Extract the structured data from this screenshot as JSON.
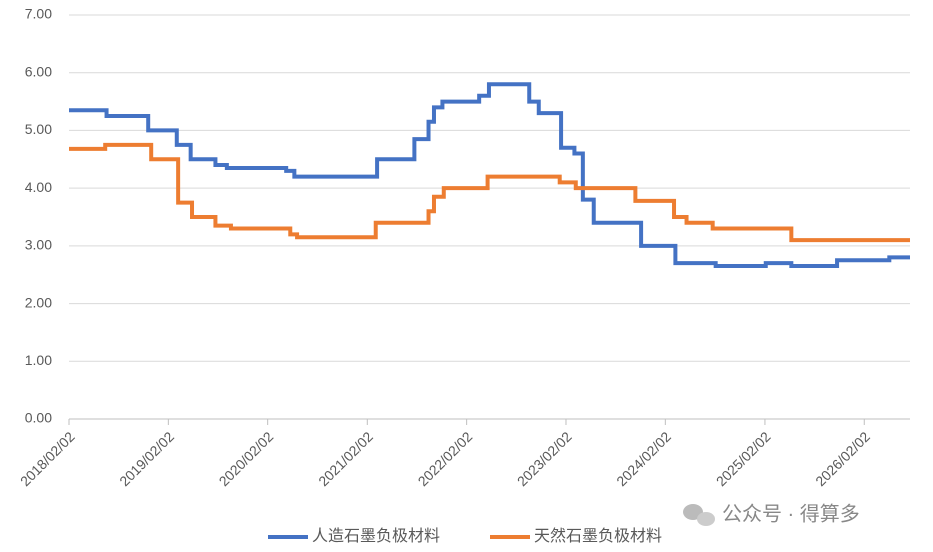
{
  "chart_data": {
    "type": "line",
    "step": "post",
    "xlim": [
      "2018/02/02",
      "2026/07/20"
    ],
    "xticks": [
      "2018/02/02",
      "2019/02/02",
      "2020/02/02",
      "2021/02/02",
      "2022/02/02",
      "2023/02/02",
      "2024/02/02",
      "2025/02/02",
      "2026/02/02"
    ],
    "ylim": [
      0,
      7
    ],
    "yticks": [
      {
        "value": 0,
        "label": "0.00"
      },
      {
        "value": 1,
        "label": "1.00"
      },
      {
        "value": 2,
        "label": "2.00"
      },
      {
        "value": 3,
        "label": "3.00"
      },
      {
        "value": 4,
        "label": "4.00"
      },
      {
        "value": 5,
        "label": "5.00"
      },
      {
        "value": 6,
        "label": "6.00"
      },
      {
        "value": 7,
        "label": "7.00"
      }
    ],
    "grid": true,
    "legend": "bottom",
    "series": [
      {
        "name": "人造石墨负极材料",
        "color": "#4472c4",
        "x": [
          "2018/02/02",
          "2018/06/20",
          "2018/11/20",
          "2019/03/05",
          "2019/04/25",
          "2019/07/25",
          "2019/09/05",
          "2020/04/10",
          "2020/05/10",
          "2021/03/10",
          "2021/07/25",
          "2021/09/15",
          "2021/10/05",
          "2021/11/05",
          "2022/03/20",
          "2022/04/25",
          "2022/09/20",
          "2022/10/25",
          "2023/01/15",
          "2023/03/05",
          "2023/04/05",
          "2023/05/15",
          "2023/11/05",
          "2024/03/10",
          "2024/08/05",
          "2025/02/05",
          "2025/05/10",
          "2025/10/25",
          "2026/05/05"
        ],
        "values": [
          5.35,
          5.25,
          5.0,
          4.75,
          4.5,
          4.4,
          4.35,
          4.3,
          4.2,
          4.5,
          4.85,
          5.15,
          5.4,
          5.5,
          5.6,
          5.8,
          5.5,
          5.3,
          4.7,
          4.6,
          3.8,
          3.4,
          3.0,
          2.7,
          2.65,
          2.7,
          2.65,
          2.75,
          2.8
        ]
      },
      {
        "name": "天然石墨负极材料",
        "color": "#ed7d31",
        "x": [
          "2018/02/02",
          "2018/06/15",
          "2018/12/01",
          "2019/03/10",
          "2019/04/30",
          "2019/07/25",
          "2019/09/20",
          "2020/04/25",
          "2020/05/20",
          "2021/03/05",
          "2021/09/15",
          "2021/10/05",
          "2021/11/10",
          "2022/04/20",
          "2023/01/10",
          "2023/03/10",
          "2023/10/15",
          "2024/03/05",
          "2024/04/20",
          "2024/07/25",
          "2025/05/10"
        ],
        "values": [
          4.68,
          4.75,
          4.5,
          3.75,
          3.5,
          3.35,
          3.3,
          3.2,
          3.15,
          3.4,
          3.6,
          3.85,
          4.0,
          4.2,
          4.1,
          4.0,
          3.78,
          3.5,
          3.4,
          3.3,
          3.1
        ]
      }
    ],
    "watermark": "公众号 · 得算多"
  }
}
